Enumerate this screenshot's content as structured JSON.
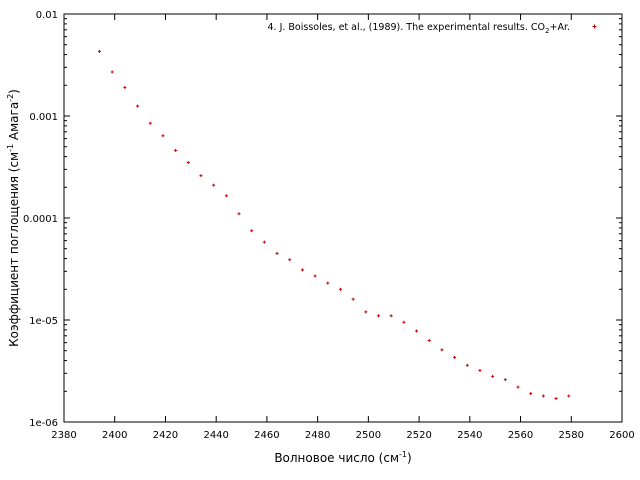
{
  "chart_data": {
    "type": "scatter",
    "title": "",
    "xlabel": {
      "base": "Волновое число (см",
      "sup": "-1",
      "tail": ")"
    },
    "ylabel": {
      "base": "Коэффициент поглощения (см",
      "sup1": "-1",
      "mid": " Амага",
      "sup2": "-2",
      "tail": ")"
    },
    "xlim": [
      2380,
      2600
    ],
    "ylim": [
      1e-06,
      0.01
    ],
    "y_scale": "log",
    "grid": false,
    "legend_position": "top-right",
    "x_ticks": [
      2380,
      2400,
      2420,
      2440,
      2460,
      2480,
      2500,
      2520,
      2540,
      2560,
      2580,
      2600
    ],
    "y_ticks": [
      {
        "value": 1e-06,
        "label": "1e-06"
      },
      {
        "value": 1e-05,
        "label": "1e-05"
      },
      {
        "value": 0.0001,
        "label": "0.0001"
      },
      {
        "value": 0.001,
        "label": "0.001"
      },
      {
        "value": 0.01,
        "label": "0.01"
      }
    ],
    "series": [
      {
        "name": "4. J. Boissoles, et al., (1989). The experimental results. CO2+Ar.",
        "name_parts": {
          "pre": "4. J. Boissoles, et al., (1989). The experimental results. CO",
          "sub": "2",
          "post": "+Ar."
        },
        "color": "#cc0000",
        "marker": "plus",
        "points": [
          [
            2394,
            0.0043
          ],
          [
            2399,
            0.0027
          ],
          [
            2404,
            0.0019
          ],
          [
            2409,
            0.00125
          ],
          [
            2414,
            0.00085
          ],
          [
            2419,
            0.00064
          ],
          [
            2424,
            0.00046
          ],
          [
            2429,
            0.00035
          ],
          [
            2434,
            0.00026
          ],
          [
            2439,
            0.00021
          ],
          [
            2444,
            0.000165
          ],
          [
            2449,
            0.00011
          ],
          [
            2454,
            7.5e-05
          ],
          [
            2459,
            5.8e-05
          ],
          [
            2464,
            4.5e-05
          ],
          [
            2469,
            3.9e-05
          ],
          [
            2474,
            3.1e-05
          ],
          [
            2479,
            2.7e-05
          ],
          [
            2484,
            2.3e-05
          ],
          [
            2489,
            2e-05
          ],
          [
            2494,
            1.6e-05
          ],
          [
            2499,
            1.2e-05
          ],
          [
            2504,
            1.1e-05
          ],
          [
            2509,
            1.1e-05
          ],
          [
            2514,
            9.5e-06
          ],
          [
            2519,
            7.8e-06
          ],
          [
            2524,
            6.3e-06
          ],
          [
            2529,
            5.1e-06
          ],
          [
            2534,
            4.3e-06
          ],
          [
            2539,
            3.6e-06
          ],
          [
            2544,
            3.2e-06
          ],
          [
            2549,
            2.8e-06
          ],
          [
            2554,
            2.6e-06
          ],
          [
            2559,
            2.2e-06
          ],
          [
            2564,
            1.9e-06
          ],
          [
            2569,
            1.8e-06
          ],
          [
            2574,
            1.7e-06
          ],
          [
            2579,
            1.8e-06
          ]
        ]
      }
    ]
  }
}
